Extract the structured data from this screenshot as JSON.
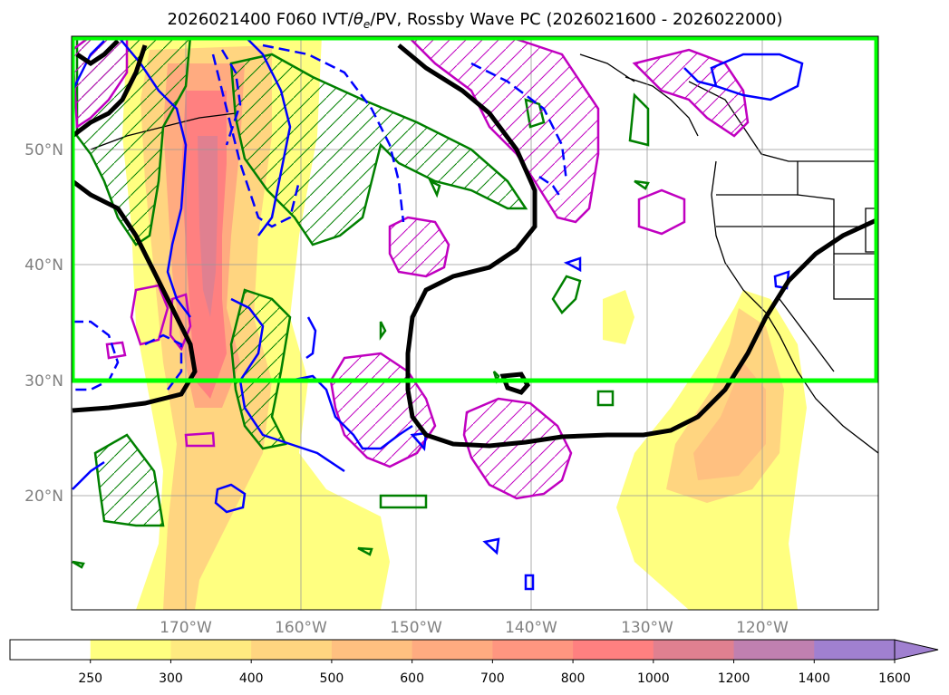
{
  "title": "2026021400 F060 IVT/θe/PV, Rossby Wave PC (2026021600 - 2026022000)",
  "title_parts": {
    "before": "2026021400 F060 IVT/",
    "theta": "θ",
    "sub": "e",
    "after": "/PV, Rossby Wave PC (2026021600 - 2026022000)"
  },
  "map": {
    "lat_labels": [
      "50°N",
      "40°N",
      "30°N",
      "20°N"
    ],
    "lon_labels": [
      "170°W",
      "160°W",
      "150°W",
      "140°W",
      "130°W",
      "120°W"
    ],
    "highlight_box_color": "#00ff00",
    "ivt_colors": [
      "#ffff80",
      "#ffea80",
      "#ffd580",
      "#ffc080",
      "#ffab80",
      "#ff9680",
      "#ff8080",
      "#e08090",
      "#c080b0",
      "#a080d0"
    ]
  },
  "colorbar": {
    "labels": [
      "250",
      "300",
      "400",
      "500",
      "600",
      "700",
      "800",
      "1000",
      "1200",
      "1400",
      "1600"
    ],
    "extend": "max",
    "colors": [
      "#ffffff",
      "#ffff80",
      "#ffea80",
      "#ffd580",
      "#ffc080",
      "#ffab80",
      "#ff9680",
      "#ff8080",
      "#e08090",
      "#c080b0",
      "#a080d0",
      "#a080d0"
    ]
  }
}
